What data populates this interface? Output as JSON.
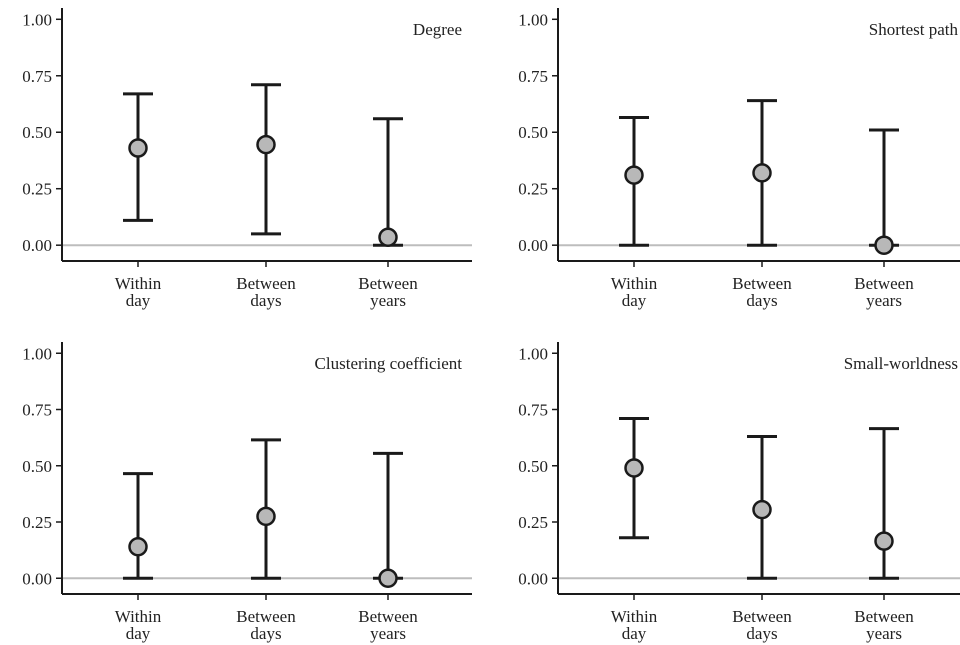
{
  "colors": {
    "axis": "#1a1a1a",
    "whisker": "#1a1a1a",
    "marker_fill": "#b8b8b8",
    "marker_stroke": "#1a1a1a",
    "zero_line": "#bdbdbd"
  },
  "chart_data": [
    {
      "type": "scatter",
      "title": "Degree",
      "categories": [
        [
          "Within",
          "day"
        ],
        [
          "Between",
          "days"
        ],
        [
          "Between",
          "years"
        ]
      ],
      "values": [
        0.43,
        0.445,
        0.035
      ],
      "ci_low": [
        0.11,
        0.05,
        0.0
      ],
      "ci_high": [
        0.67,
        0.71,
        0.56
      ],
      "yticks": [
        "1.00",
        "0.75",
        "0.50",
        "0.25",
        "0.00"
      ],
      "ylim": [
        -0.07,
        1.05
      ],
      "xlabel": "",
      "ylabel": ""
    },
    {
      "type": "scatter",
      "title": "Shortest path",
      "categories": [
        [
          "Within",
          "day"
        ],
        [
          "Between",
          "days"
        ],
        [
          "Between",
          "years"
        ]
      ],
      "values": [
        0.31,
        0.32,
        0.0
      ],
      "ci_low": [
        0.0,
        0.0,
        0.0
      ],
      "ci_high": [
        0.565,
        0.64,
        0.51
      ],
      "yticks": [
        "1.00",
        "0.75",
        "0.50",
        "0.25",
        "0.00"
      ],
      "ylim": [
        -0.07,
        1.05
      ],
      "xlabel": "",
      "ylabel": ""
    },
    {
      "type": "scatter",
      "title": "Clustering coefficient",
      "categories": [
        [
          "Within",
          "day"
        ],
        [
          "Between",
          "days"
        ],
        [
          "Between",
          "years"
        ]
      ],
      "values": [
        0.14,
        0.275,
        0.0
      ],
      "ci_low": [
        0.0,
        0.0,
        0.0
      ],
      "ci_high": [
        0.465,
        0.615,
        0.555
      ],
      "yticks": [
        "1.00",
        "0.75",
        "0.50",
        "0.25",
        "0.00"
      ],
      "ylim": [
        -0.07,
        1.05
      ],
      "xlabel": "",
      "ylabel": ""
    },
    {
      "type": "scatter",
      "title": "Small-worldness",
      "categories": [
        [
          "Within",
          "day"
        ],
        [
          "Between",
          "days"
        ],
        [
          "Between",
          "years"
        ]
      ],
      "values": [
        0.49,
        0.305,
        0.165
      ],
      "ci_low": [
        0.18,
        0.0,
        0.0
      ],
      "ci_high": [
        0.71,
        0.63,
        0.665
      ],
      "yticks": [
        "1.00",
        "0.75",
        "0.50",
        "0.25",
        "0.00"
      ],
      "ylim": [
        -0.07,
        1.05
      ],
      "xlabel": "",
      "ylabel": ""
    }
  ]
}
